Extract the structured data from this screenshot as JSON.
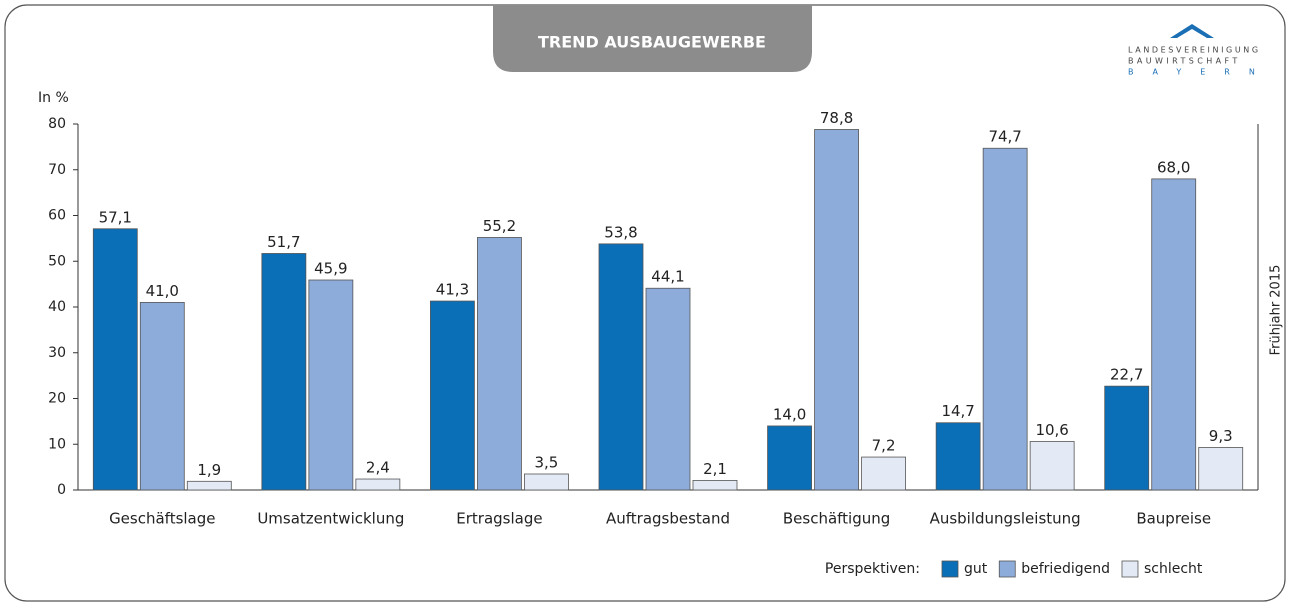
{
  "chart_data": {
    "type": "bar",
    "title": "TREND AUSBAUGEWERBE",
    "logo": [
      "LANDESVEREINIGUNG",
      "BAUWIRTSCHAFT",
      "BAYERN"
    ],
    "y_label": "In %",
    "side_note": "Frühjahr 2015",
    "legend_title": "Perspektiven:",
    "categories": [
      "Geschäftslage",
      "Umsatzentwicklung",
      "Ertragslage",
      "Auftragsbestand",
      "Beschäftigung",
      "Ausbildungsleistung",
      "Baupreise"
    ],
    "series": [
      {
        "name": "gut",
        "color": "#0a6fb7",
        "values": [
          57.1,
          51.7,
          41.3,
          53.8,
          14.0,
          14.7,
          22.7
        ],
        "value_labels": [
          "57,1",
          "51,7",
          "41,3",
          "53,8",
          "14,0",
          "14,7",
          "22,7"
        ]
      },
      {
        "name": "befriedigend",
        "color": "#8eacd9",
        "values": [
          41.0,
          45.9,
          55.2,
          44.1,
          78.8,
          74.7,
          68.0
        ],
        "value_labels": [
          "41,0",
          "45,9",
          "55,2",
          "44,1",
          "78,8",
          "74,7",
          "68,0"
        ]
      },
      {
        "name": "schlecht",
        "color": "#e3e9f5",
        "values": [
          1.9,
          2.4,
          3.5,
          2.1,
          7.2,
          10.6,
          9.3
        ],
        "value_labels": [
          "1,9",
          "2,4",
          "3,5",
          "2,1",
          "7,2",
          "10,6",
          "9,3"
        ]
      }
    ],
    "ylim": [
      0,
      80
    ],
    "yticks": [
      0,
      10,
      20,
      30,
      40,
      50,
      60,
      70,
      80
    ],
    "grid": false
  }
}
